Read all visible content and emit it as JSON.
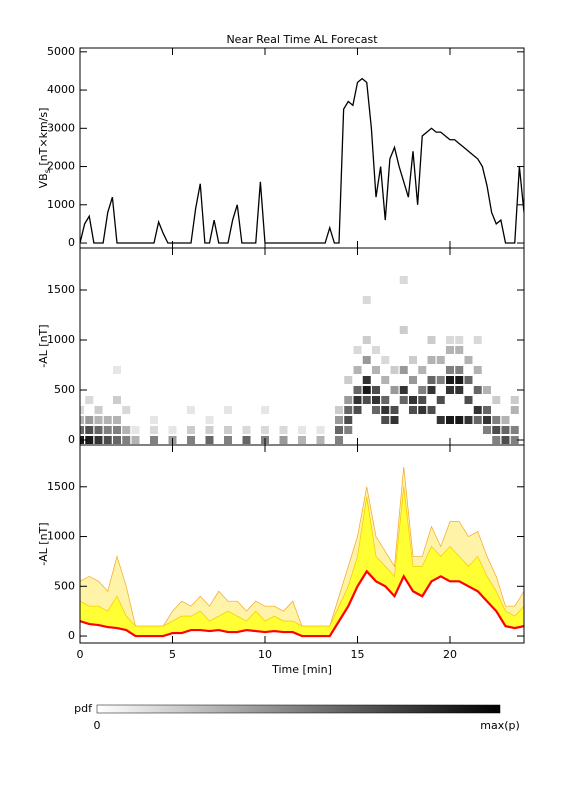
{
  "chart_data": [
    {
      "type": "line",
      "title": "Near Real Time AL Forecast",
      "ylabel": "VB",
      "ylabel_sub": "s",
      "ylabel_unit": " [nT×km/s]",
      "color": "#000000",
      "xlim": [
        0,
        24
      ],
      "xticks": [
        0,
        5,
        10,
        15,
        20
      ],
      "ylim": [
        -130,
        5100
      ],
      "yticks": [
        0,
        1000,
        2000,
        3000,
        4000,
        5000
      ],
      "show_xtick_labels": false,
      "x": [
        0,
        0.25,
        0.5,
        0.75,
        1,
        1.25,
        1.5,
        1.75,
        2,
        2.25,
        2.5,
        2.75,
        3,
        3.25,
        3.5,
        3.75,
        4,
        4.25,
        4.5,
        4.75,
        5,
        5.25,
        5.5,
        5.75,
        6,
        6.25,
        6.5,
        6.75,
        7,
        7.25,
        7.5,
        7.75,
        8,
        8.25,
        8.5,
        8.75,
        9,
        9.25,
        9.5,
        9.75,
        10,
        10.25,
        10.5,
        10.75,
        11,
        11.25,
        11.5,
        11.75,
        12,
        12.25,
        12.5,
        12.75,
        13,
        13.25,
        13.5,
        13.75,
        14,
        14.25,
        14.5,
        14.75,
        15,
        15.25,
        15.5,
        15.75,
        16,
        16.25,
        16.5,
        16.75,
        17,
        17.25,
        17.5,
        17.75,
        18,
        18.25,
        18.5,
        18.75,
        19,
        19.25,
        19.5,
        19.75,
        20,
        20.25,
        20.5,
        20.75,
        21,
        21.25,
        21.5,
        21.75,
        22,
        22.25,
        22.5,
        22.75,
        23,
        23.25,
        23.5,
        23.75,
        24
      ],
      "values": [
        0,
        500,
        700,
        0,
        0,
        0,
        800,
        1200,
        0,
        0,
        0,
        0,
        0,
        0,
        0,
        0,
        0,
        550,
        250,
        0,
        0,
        0,
        0,
        0,
        0,
        900,
        1550,
        0,
        0,
        600,
        0,
        0,
        0,
        600,
        1000,
        0,
        0,
        0,
        0,
        1600,
        0,
        0,
        0,
        0,
        0,
        0,
        0,
        0,
        0,
        0,
        0,
        0,
        0,
        0,
        400,
        0,
        0,
        3500,
        3700,
        3600,
        4200,
        4300,
        4200,
        3000,
        1200,
        2000,
        600,
        2200,
        2500,
        2000,
        1600,
        1200,
        2400,
        1000,
        2800,
        2900,
        3000,
        2900,
        2900,
        2800,
        2700,
        2700,
        2600,
        2500,
        2400,
        2300,
        2200,
        2000,
        1500,
        800,
        500,
        600,
        0,
        0,
        0,
        2000,
        800
      ]
    },
    {
      "type": "heatmap",
      "ylabel": "-AL [nT]",
      "xlim": [
        0,
        24
      ],
      "xticks": [
        0,
        5,
        10,
        15,
        20
      ],
      "ylim": [
        -50,
        1920
      ],
      "yticks": [
        0,
        500,
        1000,
        1500
      ],
      "show_xtick_labels": false,
      "x": [
        0,
        0,
        0,
        0,
        0.5,
        0.5,
        0.5,
        0.5,
        1,
        1,
        1,
        1,
        1.5,
        1.5,
        1.5,
        2,
        2,
        2,
        2,
        2,
        2.5,
        2.5,
        2.5,
        3,
        3,
        4,
        4,
        4,
        5,
        5,
        6,
        6,
        6,
        7,
        7,
        7,
        8,
        8,
        8,
        9,
        9,
        10,
        10,
        10,
        11,
        11,
        12,
        12,
        13,
        13,
        14,
        14,
        14,
        14,
        14.5,
        14.5,
        14.5,
        14.5,
        14.5,
        15,
        15,
        15,
        15,
        15,
        15.5,
        15.5,
        15.5,
        15.5,
        15.5,
        15.5,
        16,
        16,
        16,
        16,
        16,
        16.5,
        16.5,
        16.5,
        16.5,
        16.5,
        17,
        17,
        17,
        17,
        17.5,
        17.5,
        17.5,
        17.5,
        17.5,
        18,
        18,
        18,
        18,
        18.5,
        18.5,
        18.5,
        18.5,
        19,
        19,
        19,
        19,
        19,
        19.5,
        19.5,
        19.5,
        19.5,
        20,
        20,
        20,
        20,
        20,
        20,
        20.5,
        20.5,
        20.5,
        20.5,
        20.5,
        20.5,
        21,
        21,
        21,
        21,
        21.5,
        21.5,
        21.5,
        21.5,
        21.5,
        22,
        22,
        22,
        22,
        22.5,
        22.5,
        22.5,
        22.5,
        23,
        23,
        23,
        23.5,
        23.5,
        23.5,
        23.5
      ],
      "y": [
        0,
        100,
        200,
        300,
        0,
        100,
        200,
        400,
        0,
        100,
        200,
        300,
        0,
        100,
        200,
        0,
        100,
        200,
        400,
        700,
        0,
        100,
        300,
        0,
        100,
        0,
        100,
        200,
        0,
        100,
        0,
        100,
        300,
        0,
        100,
        200,
        0,
        100,
        300,
        0,
        100,
        0,
        100,
        300,
        0,
        100,
        0,
        100,
        0,
        100,
        0,
        100,
        200,
        300,
        100,
        200,
        300,
        400,
        600,
        300,
        400,
        500,
        700,
        900,
        400,
        500,
        600,
        800,
        1000,
        1400,
        300,
        400,
        500,
        700,
        900,
        200,
        300,
        400,
        600,
        800,
        200,
        300,
        500,
        700,
        400,
        500,
        700,
        1100,
        1600,
        300,
        400,
        600,
        800,
        300,
        400,
        500,
        700,
        300,
        500,
        600,
        800,
        1000,
        200,
        400,
        600,
        800,
        200,
        500,
        600,
        700,
        900,
        1000,
        200,
        500,
        600,
        700,
        900,
        1000,
        200,
        400,
        600,
        800,
        200,
        300,
        500,
        700,
        1000,
        100,
        200,
        300,
        500,
        0,
        100,
        200,
        400,
        0,
        100,
        200,
        0,
        100,
        300,
        400
      ],
      "values": [
        0.9,
        0.6,
        0.3,
        0.15,
        0.9,
        0.7,
        0.4,
        0.15,
        0.8,
        0.6,
        0.3,
        0.2,
        0.7,
        0.5,
        0.3,
        0.6,
        0.5,
        0.3,
        0.2,
        0.1,
        0.5,
        0.3,
        0.15,
        0.3,
        0.1,
        0.5,
        0.15,
        0.1,
        0.4,
        0.1,
        0.5,
        0.2,
        0.1,
        0.6,
        0.2,
        0.1,
        0.5,
        0.2,
        0.1,
        0.6,
        0.15,
        0.5,
        0.15,
        0.1,
        0.4,
        0.15,
        0.3,
        0.1,
        0.3,
        0.1,
        0.5,
        0.6,
        0.4,
        0.2,
        0.5,
        0.7,
        0.6,
        0.4,
        0.2,
        0.7,
        0.8,
        0.6,
        0.3,
        0.15,
        0.7,
        0.9,
        0.8,
        0.4,
        0.2,
        0.15,
        0.6,
        0.8,
        0.7,
        0.3,
        0.15,
        0.7,
        0.8,
        0.6,
        0.3,
        0.15,
        0.8,
        0.7,
        0.4,
        0.2,
        0.6,
        0.8,
        0.4,
        0.2,
        0.15,
        0.7,
        0.8,
        0.4,
        0.2,
        0.8,
        0.7,
        0.5,
        0.3,
        0.7,
        0.8,
        0.6,
        0.3,
        0.2,
        0.8,
        0.7,
        0.5,
        0.3,
        0.9,
        0.8,
        0.9,
        0.5,
        0.3,
        0.15,
        0.9,
        0.8,
        0.9,
        0.5,
        0.3,
        0.15,
        0.8,
        0.7,
        0.6,
        0.3,
        0.6,
        0.8,
        0.6,
        0.3,
        0.15,
        0.5,
        0.8,
        0.6,
        0.3,
        0.5,
        0.7,
        0.5,
        0.2,
        0.7,
        0.6,
        0.3,
        0.5,
        0.5,
        0.3,
        0.2
      ]
    },
    {
      "type": "band",
      "ylabel": "-AL [nT]",
      "xlabel": "Time [min]",
      "xlim": [
        0,
        24
      ],
      "xticks": [
        0,
        5,
        10,
        15,
        20
      ],
      "ylim": [
        -70,
        1920
      ],
      "yticks": [
        0,
        500,
        1000,
        1500
      ],
      "show_xtick_labels": true,
      "x": [
        0,
        0.5,
        1,
        1.5,
        2,
        2.5,
        3,
        3.5,
        4,
        4.5,
        5,
        5.5,
        6,
        6.5,
        7,
        7.5,
        8,
        8.5,
        9,
        9.5,
        10,
        10.5,
        11,
        11.5,
        12,
        12.5,
        13,
        13.5,
        14,
        14.5,
        15,
        15.5,
        16,
        16.5,
        17,
        17.5,
        18,
        18.5,
        19,
        19.5,
        20,
        20.5,
        21,
        21.5,
        22,
        22.5,
        23,
        23.5,
        24
      ],
      "series": [
        {
          "color": "#fff3a8",
          "edge": "#f5a623",
          "values": [
            550,
            600,
            550,
            450,
            800,
            500,
            100,
            100,
            100,
            100,
            250,
            350,
            300,
            400,
            300,
            450,
            350,
            350,
            250,
            350,
            300,
            300,
            250,
            350,
            100,
            100,
            100,
            100,
            400,
            700,
            1000,
            1500,
            1000,
            850,
            700,
            1700,
            800,
            800,
            1100,
            900,
            1150,
            1150,
            1000,
            1050,
            800,
            600,
            300,
            300,
            450
          ]
        },
        {
          "color": "#ffff33",
          "edge": "#f7c600",
          "values": [
            350,
            300,
            300,
            250,
            400,
            200,
            100,
            100,
            100,
            100,
            150,
            200,
            200,
            250,
            150,
            200,
            250,
            200,
            150,
            250,
            150,
            200,
            150,
            150,
            100,
            100,
            100,
            100,
            300,
            500,
            800,
            1400,
            800,
            700,
            600,
            1500,
            700,
            700,
            900,
            800,
            900,
            800,
            700,
            800,
            600,
            450,
            250,
            200,
            300
          ]
        },
        {
          "color": "#ff0000",
          "values": [
            150,
            120,
            110,
            90,
            80,
            60,
            0,
            0,
            0,
            0,
            30,
            30,
            60,
            60,
            50,
            60,
            40,
            40,
            60,
            50,
            40,
            50,
            40,
            40,
            0,
            0,
            0,
            0,
            150,
            300,
            500,
            650,
            550,
            500,
            400,
            600,
            450,
            400,
            550,
            600,
            550,
            550,
            500,
            450,
            350,
            250,
            100,
            80,
            100
          ]
        }
      ]
    }
  ],
  "colorbar": {
    "label": "pdf",
    "min_label": "0",
    "max_label": "max(p)"
  }
}
